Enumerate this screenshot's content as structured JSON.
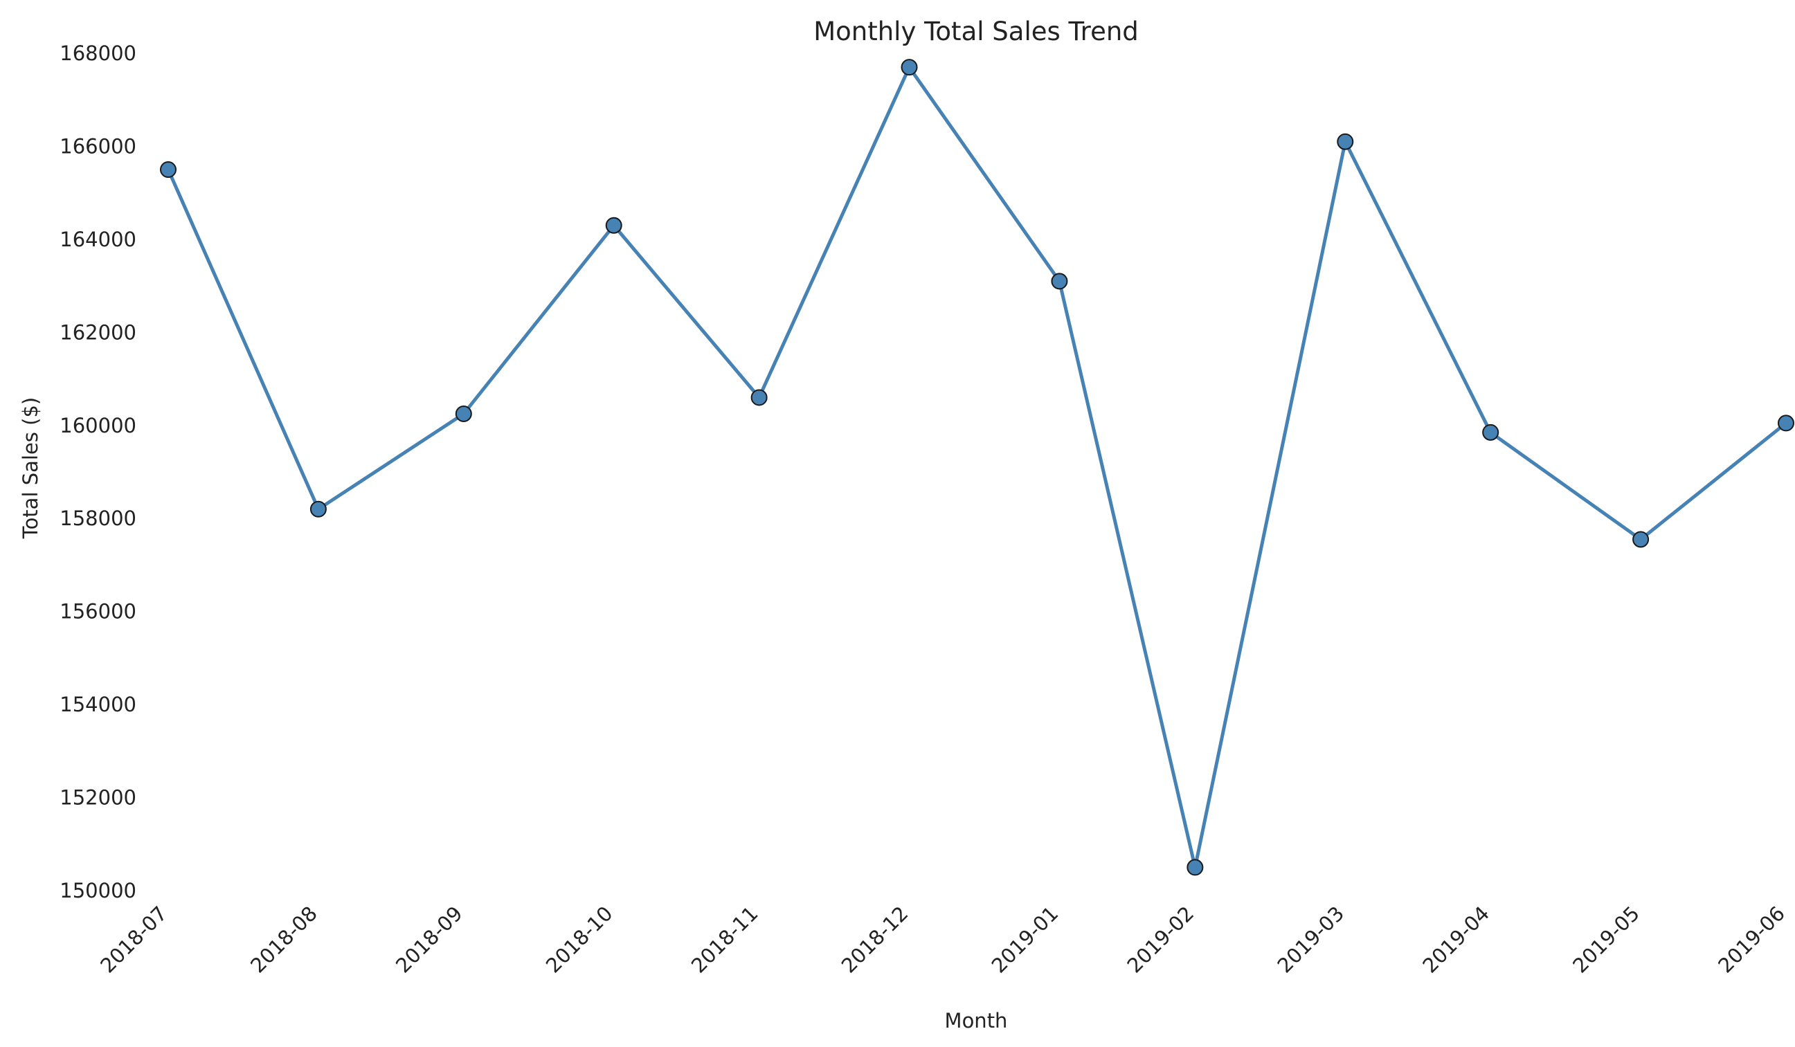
{
  "chart_data": {
    "type": "line",
    "title": "Monthly Total Sales Trend",
    "xlabel": "Month",
    "ylabel": "Total Sales ($)",
    "categories": [
      "2018-07",
      "2018-08",
      "2018-09",
      "2018-10",
      "2018-11",
      "2018-12",
      "2019-01",
      "2019-02",
      "2019-03",
      "2019-04",
      "2019-05",
      "2019-06"
    ],
    "series": [
      {
        "values": [
          165500,
          158200,
          160250,
          164300,
          160600,
          167700,
          163100,
          150500,
          166100,
          159850,
          157550,
          160050
        ],
        "color": "#4682b4"
      }
    ],
    "x_dates": [
      "2018-07-31",
      "2018-08-31",
      "2018-09-30",
      "2018-10-31",
      "2018-11-30",
      "2018-12-31",
      "2019-01-31",
      "2019-02-28",
      "2019-03-31",
      "2019-04-30",
      "2019-05-31",
      "2019-06-30"
    ],
    "x_ticks": [
      "2018-07",
      "2018-08",
      "2018-09",
      "2018-10",
      "2018-11",
      "2018-12",
      "2019-01",
      "2019-02",
      "2019-03",
      "2019-04",
      "2019-05",
      "2019-06"
    ],
    "y_ticks": [
      150000,
      152000,
      154000,
      156000,
      158000,
      160000,
      162000,
      164000,
      166000,
      168000
    ],
    "ylim": [
      150000,
      168000
    ],
    "grid": false,
    "legend": "none",
    "marker_edge_color": "#1a1a1a"
  }
}
